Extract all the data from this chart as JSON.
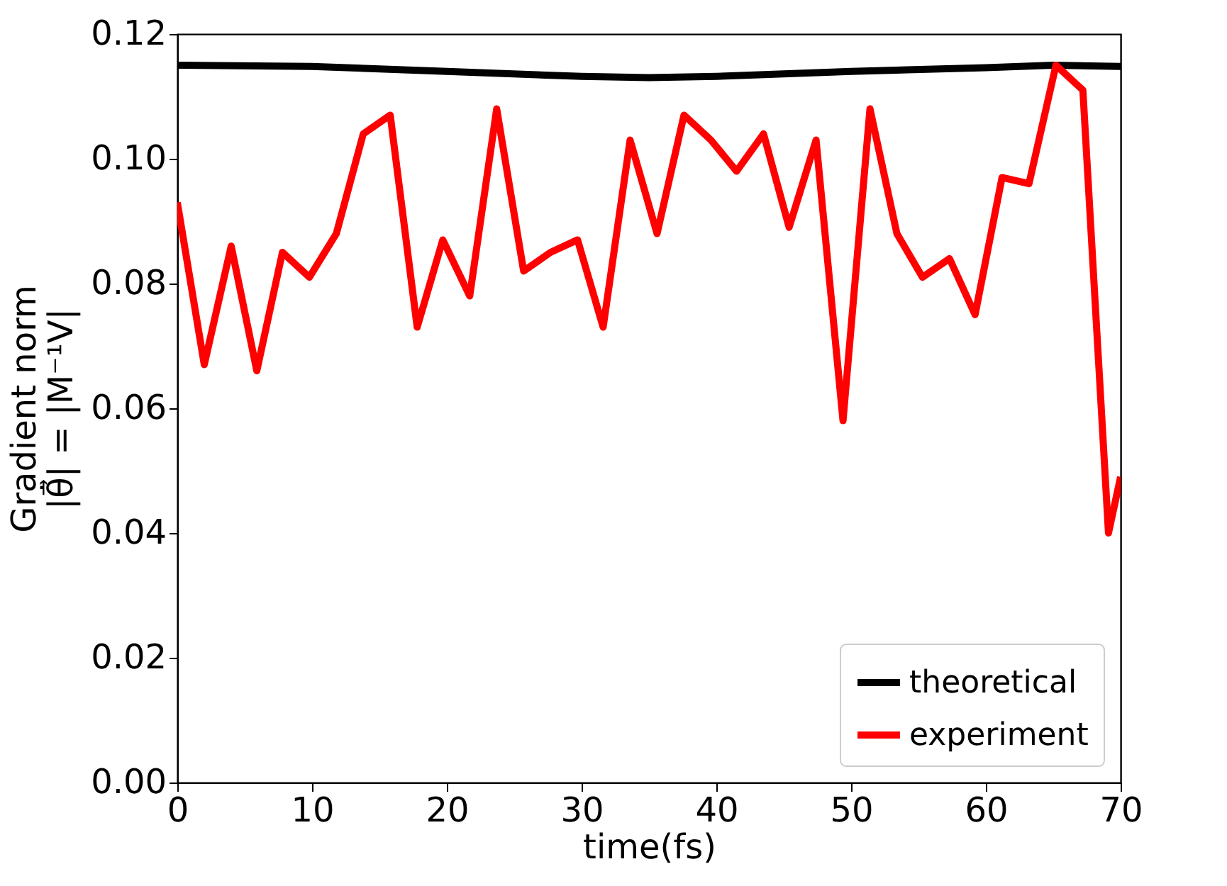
{
  "chart_data": {
    "type": "line",
    "xlabel": "time(fs)",
    "ylabel": "Gradient norm\n|θ̇⃗| = |M⁻¹V|",
    "xlim": [
      0,
      70
    ],
    "xticks": [
      0,
      10,
      20,
      30,
      40,
      50,
      60,
      70
    ],
    "ylim": [
      0,
      0.12
    ],
    "yticks": [
      {
        "value": 0,
        "label": "0.00"
      },
      0.02,
      0.04,
      0.06,
      0.08,
      {
        "value": 0.1,
        "label": "0.10"
      },
      0.12
    ],
    "grid": false,
    "legend": "bottom right",
    "line_style": "solid",
    "marker": "none",
    "series": [
      {
        "name": "theoretical",
        "color": "#000000",
        "x": [
          0,
          10,
          20,
          30,
          35,
          40,
          50,
          60,
          65,
          70
        ],
        "values": [
          0.115,
          0.1148,
          0.114,
          0.1132,
          0.113,
          0.1132,
          0.114,
          0.1146,
          0.115,
          0.1148
        ]
      },
      {
        "name": "experiment",
        "color": "#ff0000",
        "x": [
          0,
          2.0,
          4.0,
          5.9,
          7.8,
          9.8,
          11.8,
          13.8,
          15.8,
          17.8,
          19.7,
          21.7,
          23.7,
          25.7,
          27.7,
          29.7,
          31.6,
          33.6,
          35.6,
          37.6,
          39.6,
          41.5,
          43.5,
          45.4,
          47.4,
          49.4,
          51.4,
          53.4,
          55.3,
          57.3,
          59.2,
          61.2,
          63.2,
          65.2,
          67.2,
          69.1,
          70
        ],
        "values": [
          0.093,
          0.067,
          0.086,
          0.066,
          0.085,
          0.081,
          0.088,
          0.104,
          0.107,
          0.073,
          0.087,
          0.078,
          0.108,
          0.082,
          0.085,
          0.087,
          0.073,
          0.103,
          0.088,
          0.107,
          0.103,
          0.098,
          0.104,
          0.089,
          0.103,
          0.058,
          0.108,
          0.088,
          0.081,
          0.084,
          0.075,
          0.097,
          0.096,
          0.115,
          0.111,
          0.04,
          0.049
        ]
      }
    ]
  }
}
